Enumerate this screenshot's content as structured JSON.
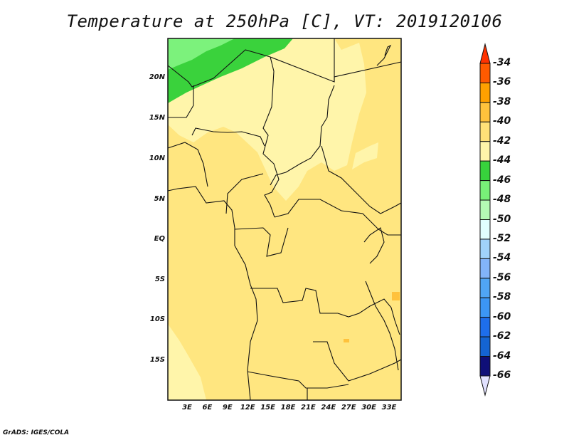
{
  "title": "Temperature at 250hPa [C], VT: 2019120106",
  "footer": "GrADS: IGES/COLA",
  "map": {
    "lat_labels": [
      "20N",
      "15N",
      "10N",
      "5N",
      "EQ",
      "5S",
      "10S",
      "15S"
    ],
    "lon_labels": [
      "3E",
      "6E",
      "9E",
      "12E",
      "15E",
      "18E",
      "21E",
      "24E",
      "27E",
      "30E",
      "33E"
    ],
    "lon_range": [
      0,
      34.6
    ],
    "lat_range": [
      -20,
      25
    ]
  },
  "colorbar": {
    "labels": [
      "-34",
      "-36",
      "-38",
      "-40",
      "-42",
      "-44",
      "-46",
      "-48",
      "-50",
      "-52",
      "-54",
      "-56",
      "-58",
      "-60",
      "-62",
      "-64",
      "-66"
    ],
    "colors": [
      "#ff5a00",
      "#ffa000",
      "#ffc23c",
      "#ffe178",
      "#fff5aa",
      "#37d23c",
      "#78f078",
      "#b4fab4",
      "#e1ffff",
      "#a0d2fa",
      "#82b4fa",
      "#50a5f5",
      "#3c96f5",
      "#1e6eeb",
      "#1464d2",
      "#0f0f78"
    ],
    "over_color": "#ff3200",
    "under_color": "#e1e1ff"
  }
}
